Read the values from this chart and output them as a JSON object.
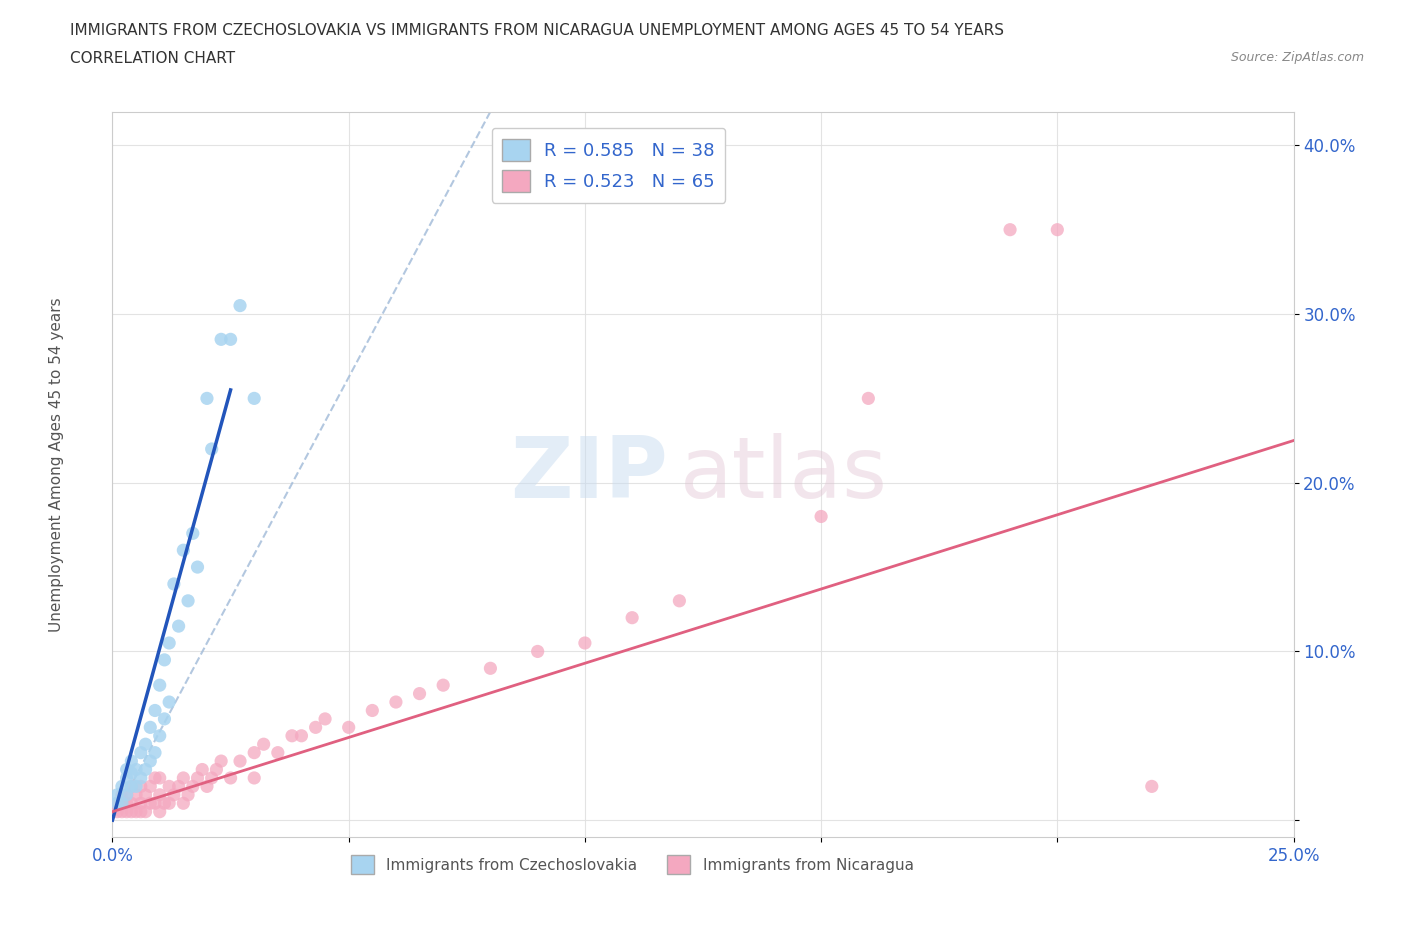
{
  "title_line1": "IMMIGRANTS FROM CZECHOSLOVAKIA VS IMMIGRANTS FROM NICARAGUA UNEMPLOYMENT AMONG AGES 45 TO 54 YEARS",
  "title_line2": "CORRELATION CHART",
  "source_text": "Source: ZipAtlas.com",
  "ylabel": "Unemployment Among Ages 45 to 54 years",
  "xlim": [
    0.0,
    0.25
  ],
  "ylim": [
    -0.01,
    0.42
  ],
  "x_ticks": [
    0.0,
    0.05,
    0.1,
    0.15,
    0.2,
    0.25
  ],
  "y_ticks": [
    0.0,
    0.1,
    0.2,
    0.3,
    0.4
  ],
  "color_czech": "#A8D4F0",
  "color_nicaragua": "#F4A8C0",
  "color_czech_line": "#2255BB",
  "color_nicaragua_line": "#E06080",
  "color_dashed": "#A0BAD8",
  "legend_R_czech": "R = 0.585",
  "legend_N_czech": "N = 38",
  "legend_R_nicaragua": "R = 0.523",
  "legend_N_nicaragua": "N = 65",
  "legend_label_czech": "Immigrants from Czechoslovakia",
  "legend_label_nicaragua": "Immigrants from Nicaragua",
  "watermark_zip": "ZIP",
  "watermark_atlas": "atlas",
  "czech_x": [
    0.001,
    0.001,
    0.002,
    0.002,
    0.003,
    0.003,
    0.003,
    0.004,
    0.004,
    0.004,
    0.005,
    0.005,
    0.006,
    0.006,
    0.007,
    0.007,
    0.008,
    0.008,
    0.009,
    0.009,
    0.01,
    0.01,
    0.011,
    0.011,
    0.012,
    0.012,
    0.013,
    0.014,
    0.015,
    0.016,
    0.017,
    0.018,
    0.02,
    0.021,
    0.023,
    0.025,
    0.027,
    0.03
  ],
  "czech_y": [
    0.01,
    0.015,
    0.01,
    0.02,
    0.015,
    0.025,
    0.03,
    0.02,
    0.028,
    0.035,
    0.02,
    0.03,
    0.025,
    0.04,
    0.03,
    0.045,
    0.035,
    0.055,
    0.04,
    0.065,
    0.05,
    0.08,
    0.06,
    0.095,
    0.07,
    0.105,
    0.14,
    0.115,
    0.16,
    0.13,
    0.17,
    0.15,
    0.25,
    0.22,
    0.285,
    0.285,
    0.305,
    0.25
  ],
  "czech_line_x": [
    0.0,
    0.025
  ],
  "czech_line_y": [
    0.0,
    0.255
  ],
  "nicaragua_x": [
    0.001,
    0.001,
    0.002,
    0.002,
    0.002,
    0.003,
    0.003,
    0.003,
    0.004,
    0.004,
    0.004,
    0.005,
    0.005,
    0.006,
    0.006,
    0.006,
    0.007,
    0.007,
    0.008,
    0.008,
    0.009,
    0.009,
    0.01,
    0.01,
    0.01,
    0.011,
    0.012,
    0.012,
    0.013,
    0.014,
    0.015,
    0.015,
    0.016,
    0.017,
    0.018,
    0.019,
    0.02,
    0.021,
    0.022,
    0.023,
    0.025,
    0.027,
    0.03,
    0.03,
    0.032,
    0.035,
    0.038,
    0.04,
    0.043,
    0.045,
    0.05,
    0.055,
    0.06,
    0.065,
    0.07,
    0.08,
    0.09,
    0.1,
    0.11,
    0.12,
    0.15,
    0.16,
    0.19,
    0.2,
    0.22
  ],
  "nicaragua_y": [
    0.005,
    0.01,
    0.005,
    0.01,
    0.015,
    0.005,
    0.01,
    0.015,
    0.005,
    0.01,
    0.02,
    0.005,
    0.015,
    0.005,
    0.01,
    0.02,
    0.005,
    0.015,
    0.01,
    0.02,
    0.01,
    0.025,
    0.005,
    0.015,
    0.025,
    0.01,
    0.01,
    0.02,
    0.015,
    0.02,
    0.01,
    0.025,
    0.015,
    0.02,
    0.025,
    0.03,
    0.02,
    0.025,
    0.03,
    0.035,
    0.025,
    0.035,
    0.025,
    0.04,
    0.045,
    0.04,
    0.05,
    0.05,
    0.055,
    0.06,
    0.055,
    0.065,
    0.07,
    0.075,
    0.08,
    0.09,
    0.1,
    0.105,
    0.12,
    0.13,
    0.18,
    0.25,
    0.35,
    0.35,
    0.02
  ],
  "nicaragua_line_x": [
    0.0,
    0.25
  ],
  "nicaragua_line_y": [
    0.005,
    0.225
  ]
}
